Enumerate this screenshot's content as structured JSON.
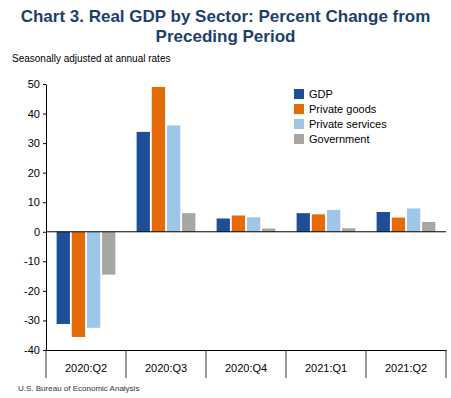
{
  "chart_data": {
    "type": "bar",
    "title": "Chart 3. Real GDP by Sector: Percent Change from Preceding Period",
    "subtitle": "Seasonally adjusted at annual rates",
    "source": "U.S. Bureau of Economic Analysis",
    "categories": [
      "2020:Q2",
      "2020:Q3",
      "2020:Q4",
      "2021:Q1",
      "2021:Q2"
    ],
    "series": [
      {
        "name": "GDP",
        "color": "#1f4e99",
        "values": [
          -31.2,
          33.8,
          4.5,
          6.3,
          6.7
        ]
      },
      {
        "name": "Private goods",
        "color": "#e36c09",
        "values": [
          -35.6,
          49.0,
          5.5,
          5.9,
          4.8
        ]
      },
      {
        "name": "Private services",
        "color": "#9fc5e8",
        "values": [
          -32.5,
          36.0,
          4.9,
          7.4,
          7.9
        ]
      },
      {
        "name": "Government",
        "color": "#a6a6a6",
        "values": [
          -14.5,
          6.3,
          1.1,
          1.2,
          3.3
        ]
      }
    ],
    "ylim": [
      -40,
      50
    ],
    "yticks": [
      -40,
      -30,
      -20,
      -10,
      0,
      10,
      20,
      30,
      40,
      50
    ],
    "grid": false,
    "legend": "upper right"
  }
}
